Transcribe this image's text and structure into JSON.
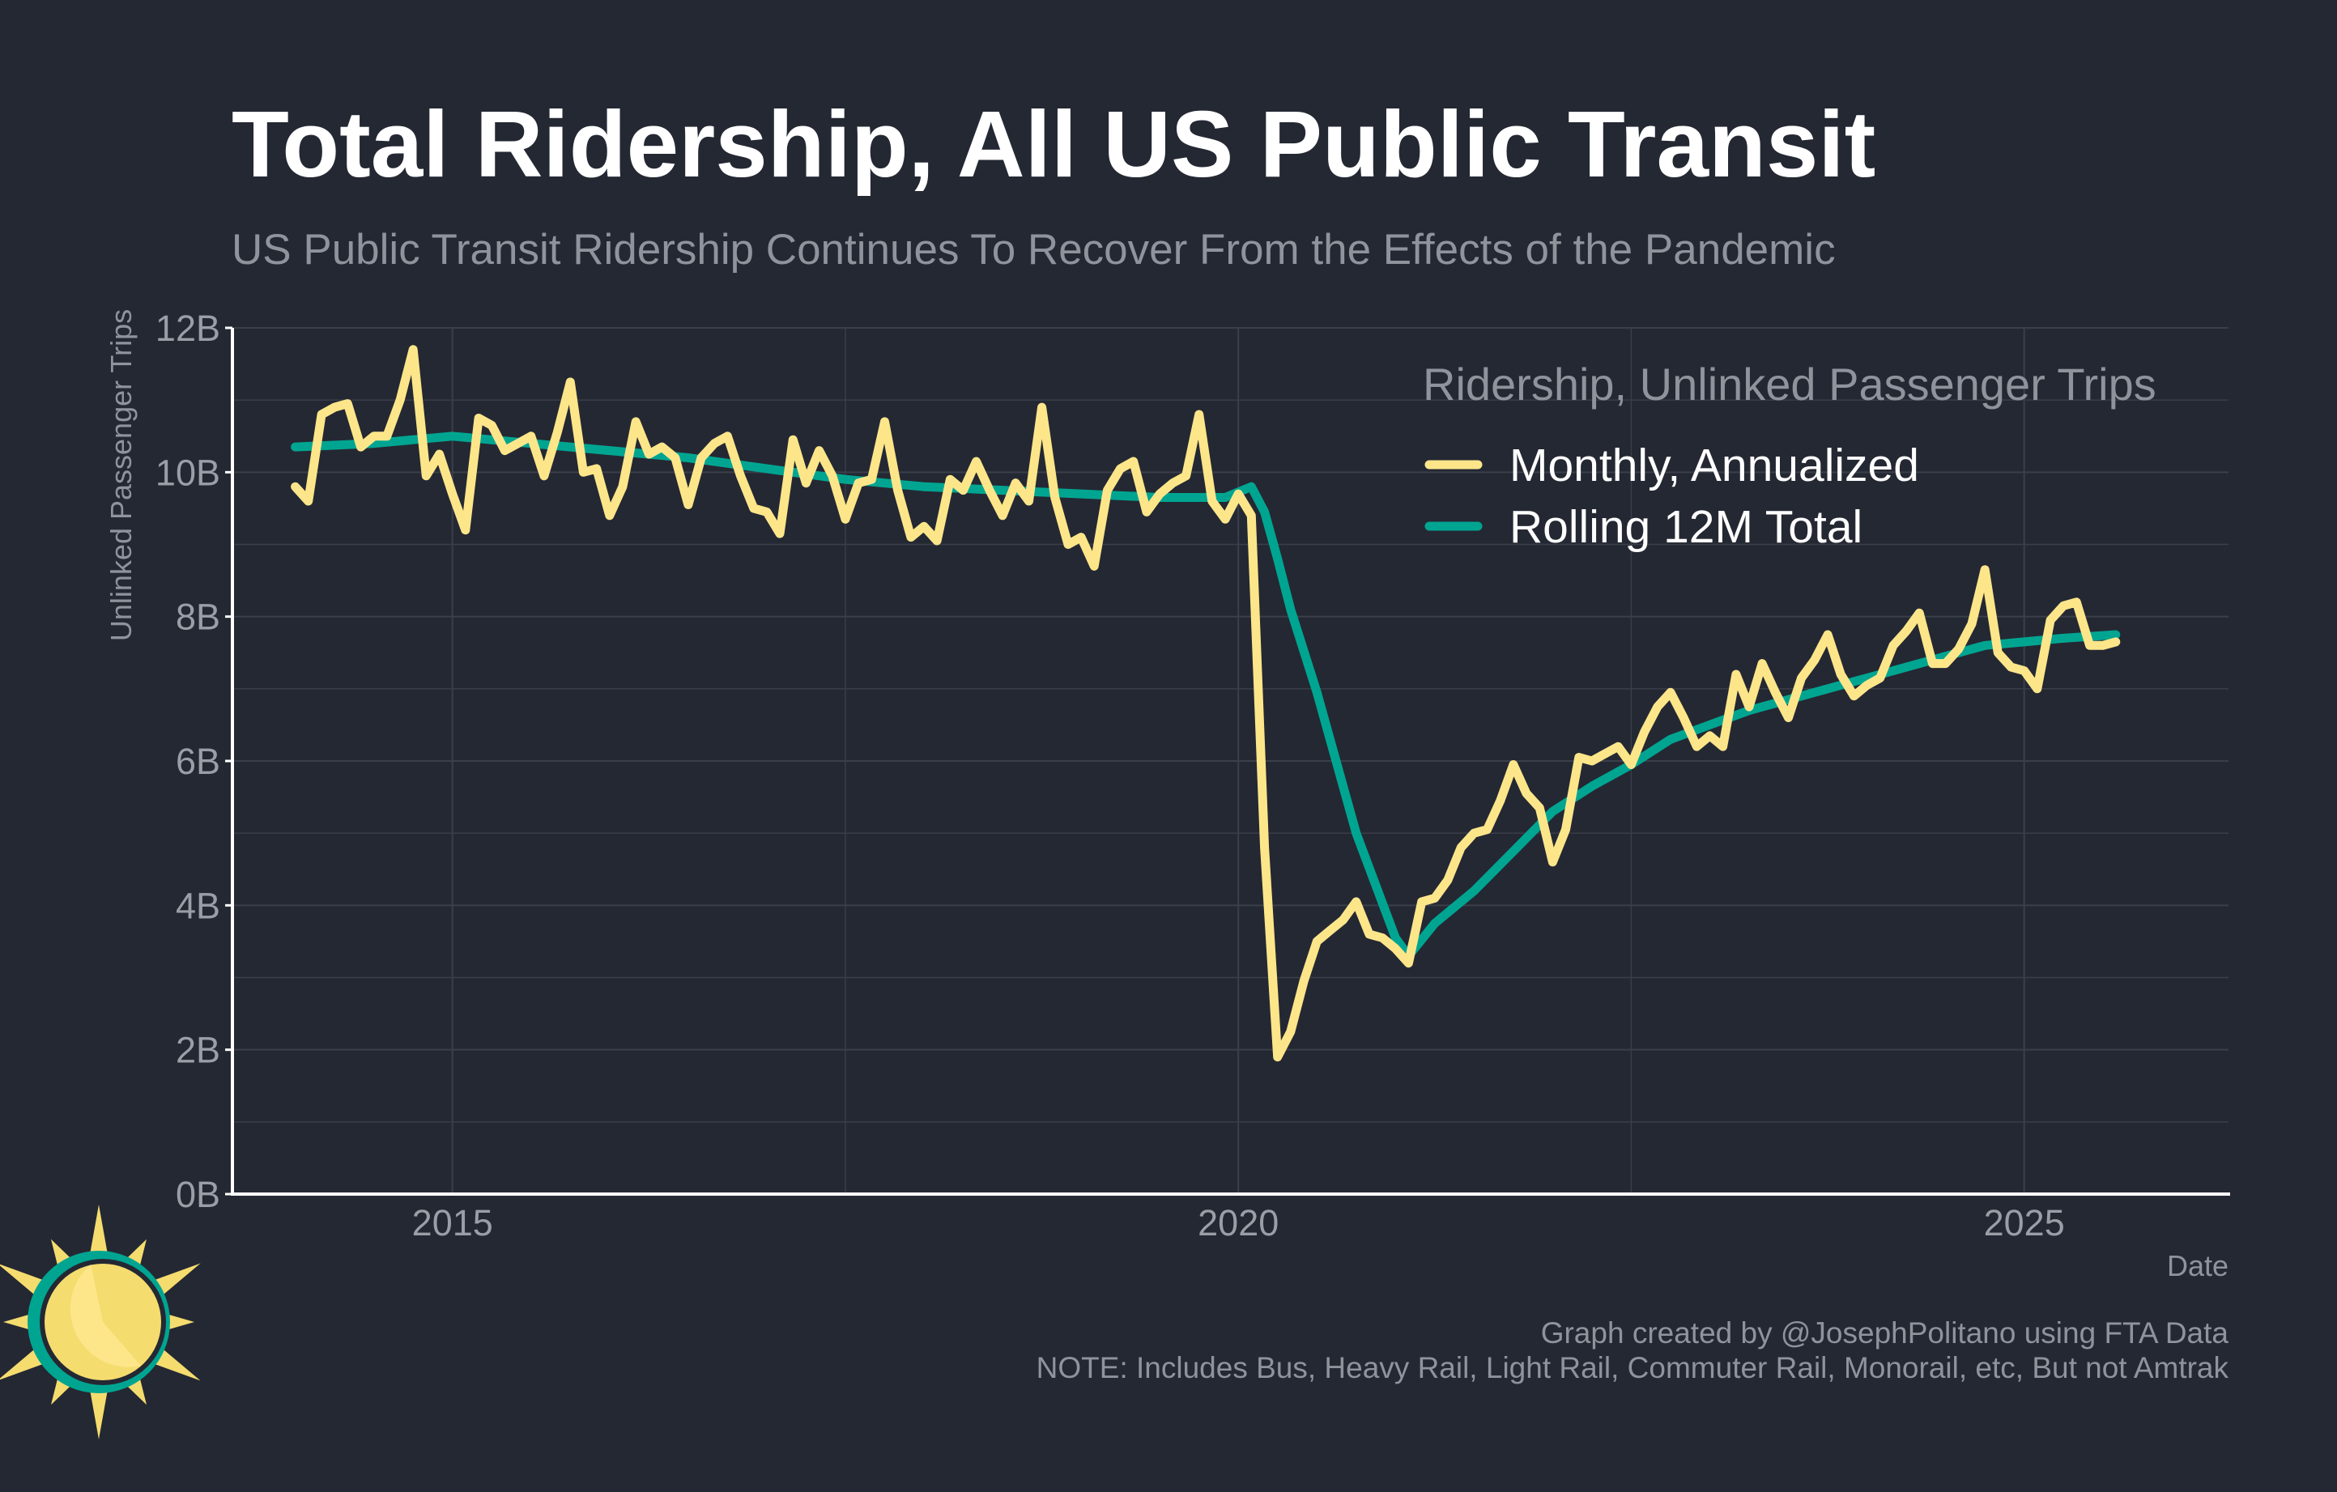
{
  "colors": {
    "background": "#242833",
    "monthly": "#fde68a",
    "rolling": "#00a591",
    "grid": "#3a3f4a",
    "axis": "#ffffff"
  },
  "logo": {
    "icon": "sun-logo-icon"
  },
  "chart_data": {
    "type": "line",
    "title": "Total Ridership, All US Public Transit",
    "subtitle": "US Public Transit Ridership Continues To Recover From the Effects of the Pandemic",
    "xlabel": "Date",
    "ylabel": "Unlinked Passenger Trips",
    "x_ticks": [
      "2015",
      "2020",
      "2025"
    ],
    "y_ticks": [
      "0B",
      "2B",
      "4B",
      "6B",
      "8B",
      "10B",
      "12B"
    ],
    "xlim": [
      2013.6,
      2026.3
    ],
    "ylim": [
      0,
      12
    ],
    "grid": true,
    "legend": {
      "title": "Ridership, Unlinked Passenger Trips",
      "position": "top-right",
      "entries": [
        "Monthly, Annualized",
        "Rolling 12M Total"
      ]
    },
    "series": [
      {
        "name": "Monthly, Annualized",
        "color": "#fde68a",
        "x": [
          2014.0,
          2014.083,
          2014.167,
          2014.25,
          2014.333,
          2014.417,
          2014.5,
          2014.583,
          2014.667,
          2014.75,
          2014.833,
          2014.917,
          2015.0,
          2015.083,
          2015.167,
          2015.25,
          2015.333,
          2015.417,
          2015.5,
          2015.583,
          2015.667,
          2015.75,
          2015.833,
          2015.917,
          2016.0,
          2016.083,
          2016.167,
          2016.25,
          2016.333,
          2016.417,
          2016.5,
          2016.583,
          2016.667,
          2016.75,
          2016.833,
          2016.917,
          2017.0,
          2017.083,
          2017.167,
          2017.25,
          2017.333,
          2017.417,
          2017.5,
          2017.583,
          2017.667,
          2017.75,
          2017.833,
          2017.917,
          2018.0,
          2018.083,
          2018.167,
          2018.25,
          2018.333,
          2018.417,
          2018.5,
          2018.583,
          2018.667,
          2018.75,
          2018.833,
          2018.917,
          2019.0,
          2019.083,
          2019.167,
          2019.25,
          2019.333,
          2019.417,
          2019.5,
          2019.583,
          2019.667,
          2019.75,
          2019.833,
          2019.917,
          2020.0,
          2020.083,
          2020.167,
          2020.25,
          2020.333,
          2020.417,
          2020.5,
          2020.583,
          2020.667,
          2020.75,
          2020.833,
          2020.917,
          2021.0,
          2021.083,
          2021.167,
          2021.25,
          2021.333,
          2021.417,
          2021.5,
          2021.583,
          2021.667,
          2021.75,
          2021.833,
          2021.917,
          2022.0,
          2022.083,
          2022.167,
          2022.25,
          2022.333,
          2022.417,
          2022.5,
          2022.583,
          2022.667,
          2022.75,
          2022.833,
          2022.917,
          2023.0,
          2023.083,
          2023.167,
          2023.25,
          2023.333,
          2023.417,
          2023.5,
          2023.583,
          2023.667,
          2023.75,
          2023.833,
          2023.917,
          2024.0,
          2024.083,
          2024.167,
          2024.25,
          2024.333,
          2024.417,
          2024.5,
          2024.583,
          2024.667,
          2024.75,
          2024.833,
          2024.917,
          2025.0,
          2025.083,
          2025.167,
          2025.25,
          2025.333,
          2025.417,
          2025.5,
          2025.583
        ],
        "values": [
          9.8,
          9.6,
          10.8,
          10.9,
          10.95,
          10.35,
          10.5,
          10.5,
          11.0,
          11.7,
          9.95,
          10.25,
          9.7,
          9.2,
          10.75,
          10.65,
          10.3,
          10.4,
          10.5,
          9.95,
          10.55,
          11.25,
          10.0,
          10.05,
          9.4,
          9.8,
          10.7,
          10.25,
          10.35,
          10.2,
          9.55,
          10.2,
          10.4,
          10.5,
          9.95,
          9.5,
          9.45,
          9.15,
          10.45,
          9.85,
          10.3,
          9.95,
          9.35,
          9.85,
          9.9,
          10.7,
          9.75,
          9.1,
          9.25,
          9.05,
          9.9,
          9.75,
          10.15,
          9.75,
          9.4,
          9.85,
          9.6,
          10.9,
          9.65,
          9.0,
          9.1,
          8.7,
          9.75,
          10.05,
          10.15,
          9.45,
          9.7,
          9.85,
          9.95,
          10.8,
          9.6,
          9.35,
          9.7,
          9.4,
          4.8,
          1.9,
          2.25,
          2.95,
          3.5,
          3.65,
          3.8,
          4.05,
          3.6,
          3.55,
          3.4,
          3.2,
          4.05,
          4.1,
          4.35,
          4.8,
          5.0,
          5.05,
          5.45,
          5.95,
          5.55,
          5.35,
          4.6,
          5.05,
          6.05,
          6.0,
          6.1,
          6.2,
          5.95,
          6.4,
          6.75,
          6.95,
          6.6,
          6.2,
          6.35,
          6.2,
          7.2,
          6.75,
          7.35,
          6.95,
          6.6,
          7.15,
          7.4,
          7.75,
          7.2,
          6.9,
          7.05,
          7.15,
          7.6,
          7.8,
          8.05,
          7.35,
          7.35,
          7.55,
          7.9,
          8.65,
          7.5,
          7.3,
          7.25,
          7.0,
          7.95,
          8.15,
          8.2,
          7.6,
          7.6,
          7.65
        ]
      },
      {
        "name": "Rolling 12M Total",
        "color": "#00a591",
        "x": [
          2014.0,
          2014.5,
          2014.75,
          2015.0,
          2015.5,
          2016.0,
          2016.5,
          2017.0,
          2017.5,
          2018.0,
          2018.5,
          2019.0,
          2019.5,
          2019.917,
          2020.083,
          2020.167,
          2020.25,
          2020.333,
          2020.5,
          2020.75,
          2021.0,
          2021.083,
          2021.25,
          2021.5,
          2021.75,
          2022.0,
          2022.25,
          2022.5,
          2022.75,
          2023.0,
          2023.25,
          2023.5,
          2023.75,
          2024.0,
          2024.25,
          2024.5,
          2024.75,
          2025.0,
          2025.25,
          2025.583
        ],
        "values": [
          10.35,
          10.4,
          10.45,
          10.5,
          10.4,
          10.3,
          10.2,
          10.05,
          9.9,
          9.8,
          9.75,
          9.7,
          9.65,
          9.65,
          9.8,
          9.45,
          8.8,
          8.1,
          6.95,
          5.0,
          3.55,
          3.3,
          3.75,
          4.2,
          4.75,
          5.3,
          5.65,
          5.95,
          6.3,
          6.5,
          6.7,
          6.85,
          7.0,
          7.15,
          7.3,
          7.45,
          7.6,
          7.65,
          7.7,
          7.75
        ]
      }
    ]
  },
  "footer": {
    "credit": "Graph created by @JosephPolitano using FTA Data",
    "note": "NOTE: Includes Bus, Heavy Rail, Light Rail, Commuter Rail, Monorail, etc, But not Amtrak"
  }
}
